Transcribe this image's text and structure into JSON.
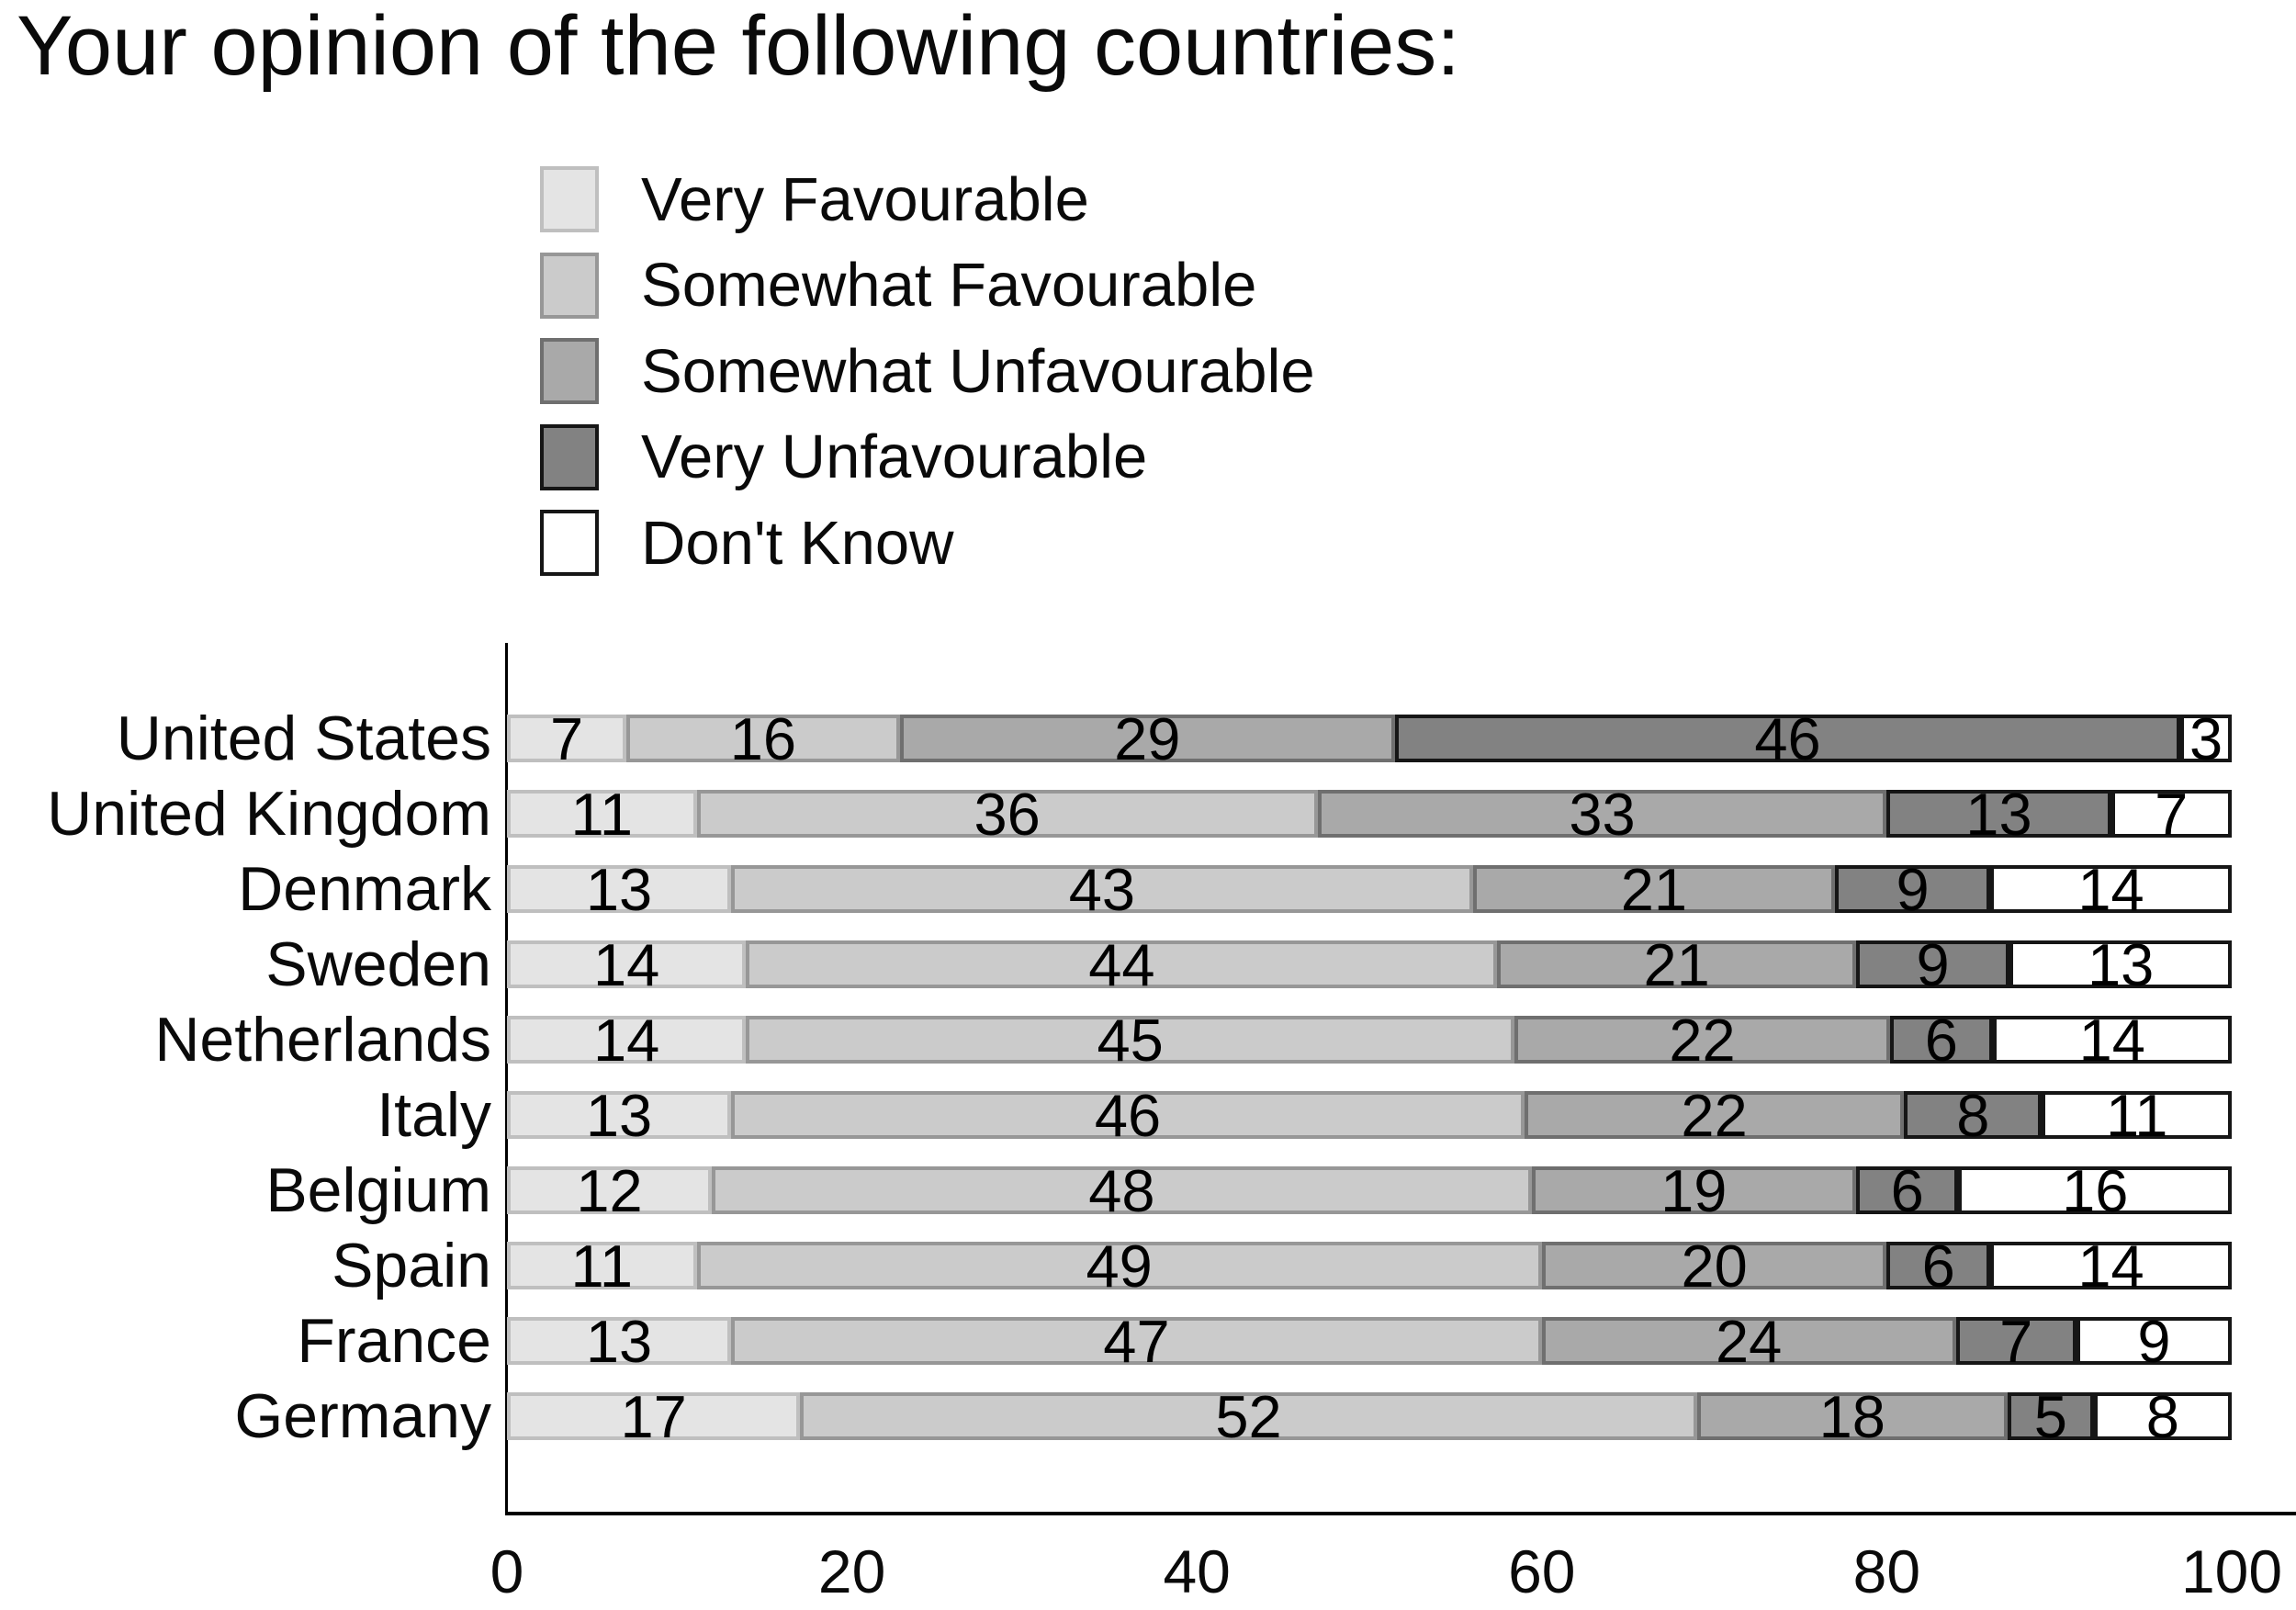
{
  "title": "Your opinion of the following countries:",
  "legend": {
    "items": [
      {
        "label": "Very Favourable",
        "color": "#e4e4e4",
        "border": "#bfbfbf"
      },
      {
        "label": "Somewhat Favourable",
        "color": "#cbcbcb",
        "border": "#979797"
      },
      {
        "label": "Somewhat Unfavourable",
        "color": "#a9a9a9",
        "border": "#6f6f6f"
      },
      {
        "label": "Very Unfavourable",
        "color": "#828282",
        "border": "#161616"
      },
      {
        "label": "Don't Know",
        "color": "#ffffff",
        "border": "#161616"
      }
    ]
  },
  "chart_data": {
    "type": "bar",
    "orientation": "horizontal",
    "stacked": true,
    "title": "Your opinion of the following countries:",
    "xlabel": "",
    "ylabel": "",
    "xlim": [
      0,
      100
    ],
    "x_ticks": [
      0,
      20,
      40,
      60,
      80,
      100
    ],
    "grid": false,
    "legend_position": "top-left below title",
    "value_labels": "inside center of each segment",
    "categories": [
      "United States",
      "United Kingdom",
      "Denmark",
      "Sweden",
      "Netherlands",
      "Italy",
      "Belgium",
      "Spain",
      "France",
      "Germany"
    ],
    "series": [
      {
        "name": "Very Favourable",
        "values": [
          7,
          11,
          13,
          14,
          14,
          13,
          12,
          11,
          13,
          17
        ]
      },
      {
        "name": "Somewhat Favourable",
        "values": [
          16,
          36,
          43,
          44,
          45,
          46,
          48,
          49,
          47,
          52
        ]
      },
      {
        "name": "Somewhat Unfavourable",
        "values": [
          29,
          33,
          21,
          21,
          22,
          22,
          19,
          20,
          24,
          18
        ]
      },
      {
        "name": "Very Unfavourable",
        "values": [
          46,
          13,
          9,
          9,
          6,
          8,
          6,
          6,
          7,
          5
        ]
      },
      {
        "name": "Don't Know",
        "values": [
          3,
          7,
          14,
          13,
          14,
          11,
          16,
          14,
          9,
          8
        ]
      }
    ]
  }
}
